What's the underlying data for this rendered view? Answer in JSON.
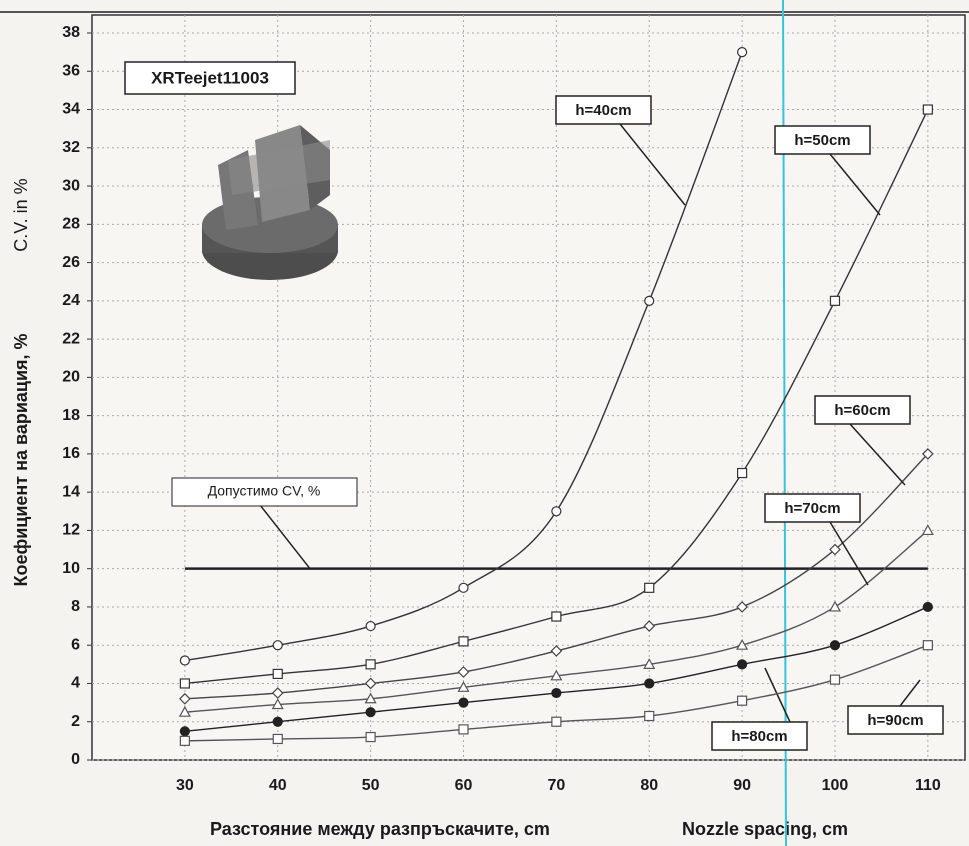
{
  "chart_data": {
    "type": "line",
    "title": "XRTeejet11003",
    "y_label": "Коефициент на вариация, %",
    "y_label_en": "C.V. in %",
    "x_label": "Разстояние между разпръскачите, cm",
    "x_label_en": "Nozzle spacing, cm",
    "x": [
      30,
      40,
      50,
      60,
      70,
      80,
      90,
      100,
      110
    ],
    "xlim": [
      20,
      114
    ],
    "xticks": [
      30,
      40,
      50,
      60,
      70,
      80,
      90,
      100,
      110
    ],
    "ylim": [
      0,
      38
    ],
    "yticks": [
      0,
      2,
      4,
      6,
      8,
      10,
      12,
      14,
      16,
      18,
      20,
      22,
      24,
      26,
      28,
      30,
      32,
      34,
      36,
      38
    ],
    "grid": true,
    "reference_line": {
      "label": "Допустимо CV, %",
      "value": 10,
      "color": "#222222"
    },
    "series": [
      {
        "name": "h=40cm",
        "color": "#333333",
        "marker": "circle",
        "values": [
          5.2,
          6,
          7,
          9,
          13,
          24,
          37,
          null,
          null
        ]
      },
      {
        "name": "h=50cm",
        "color": "#333333",
        "marker": "square",
        "values": [
          4,
          4.5,
          5,
          6.2,
          7.5,
          9,
          15,
          24,
          34
        ]
      },
      {
        "name": "h=60cm",
        "color": "#444444",
        "marker": "diamond",
        "values": [
          3.2,
          3.5,
          4,
          4.6,
          5.7,
          7,
          8,
          11,
          16
        ]
      },
      {
        "name": "h=70cm",
        "color": "#555555",
        "marker": "triangle",
        "values": [
          2.5,
          2.9,
          3.2,
          3.8,
          4.4,
          5,
          6,
          8,
          12
        ]
      },
      {
        "name": "h=80cm",
        "color": "#222222",
        "marker": "filled-circle",
        "values": [
          1.5,
          2,
          2.5,
          3,
          3.5,
          4,
          5,
          6,
          8
        ]
      },
      {
        "name": "h=90cm",
        "color": "#555555",
        "marker": "square",
        "values": [
          1,
          1.1,
          1.2,
          1.6,
          2,
          2.3,
          3.1,
          4.2,
          6
        ]
      }
    ]
  }
}
